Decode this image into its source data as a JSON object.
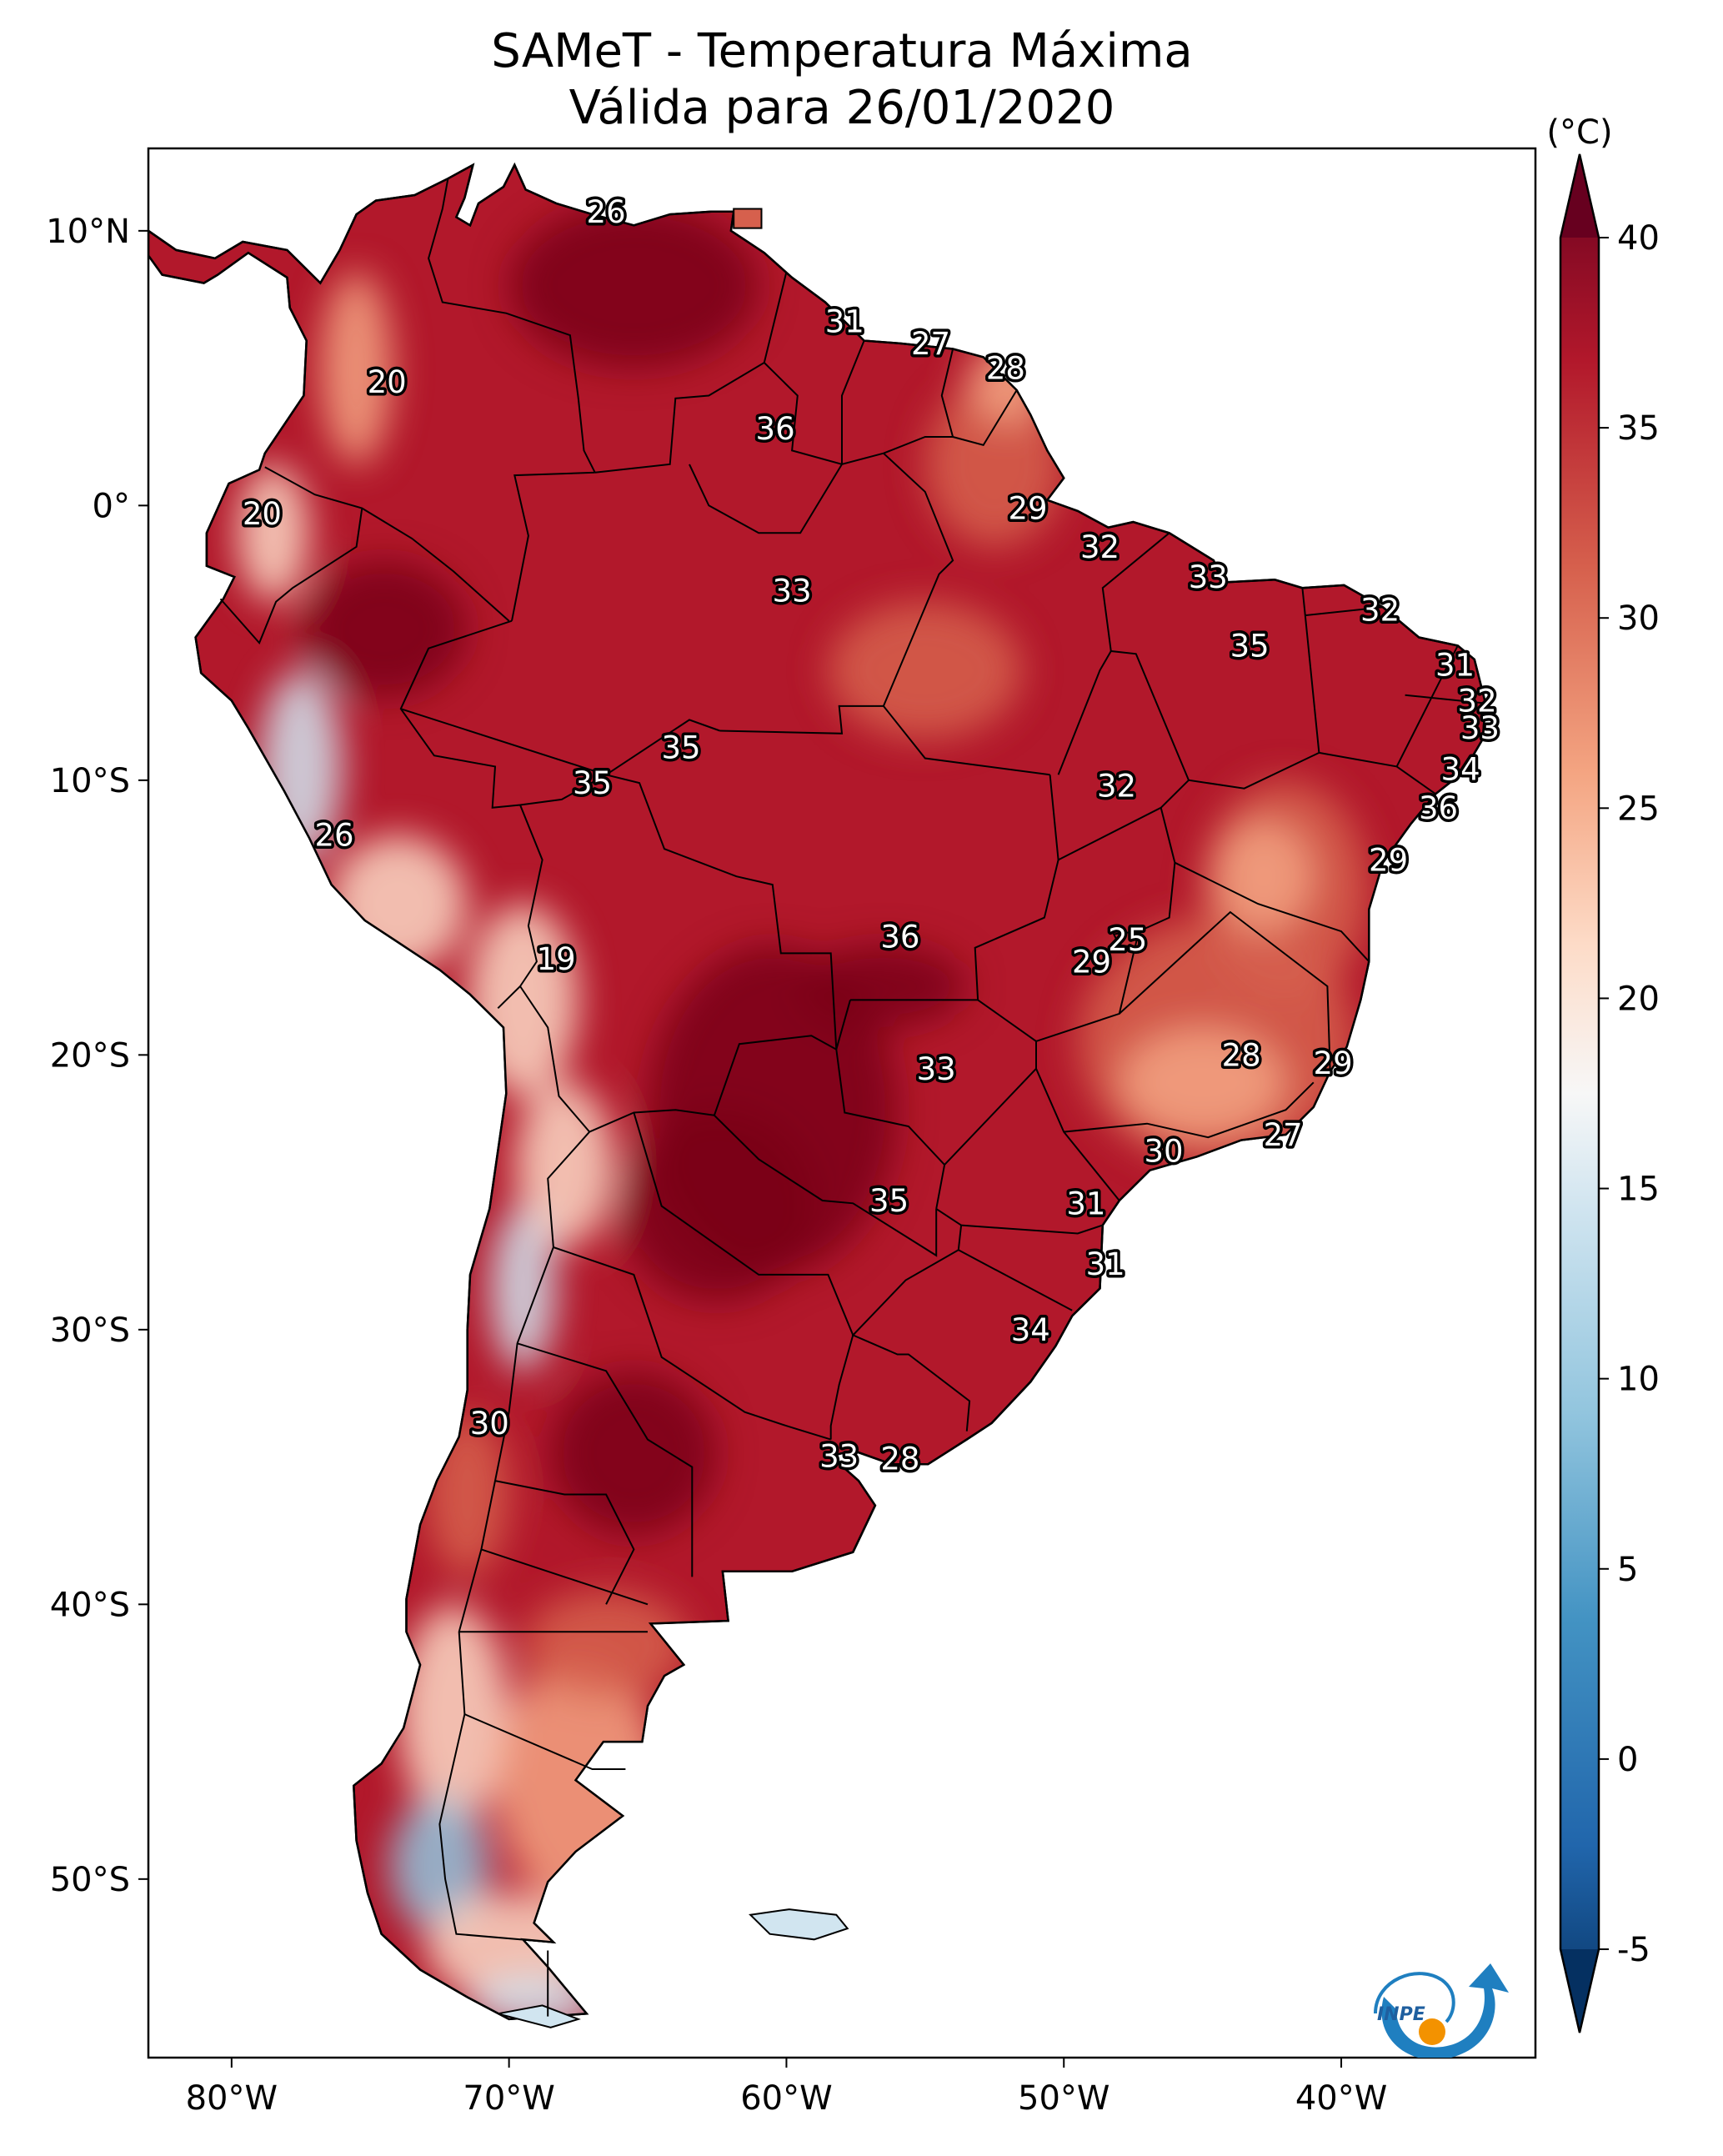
{
  "title": {
    "line1": "SAMeT - Temperatura Máxima",
    "line2": "Válida para 26/01/2020"
  },
  "map": {
    "lat_ticks": [
      {
        "label": "10°N",
        "lat": 10
      },
      {
        "label": "0°",
        "lat": 0
      },
      {
        "label": "10°S",
        "lat": -10
      },
      {
        "label": "20°S",
        "lat": -20
      },
      {
        "label": "30°S",
        "lat": -30
      },
      {
        "label": "40°S",
        "lat": -40
      },
      {
        "label": "50°S",
        "lat": -50
      }
    ],
    "lon_ticks": [
      {
        "label": "80°W",
        "lon": -80
      },
      {
        "label": "70°W",
        "lon": -70
      },
      {
        "label": "60°W",
        "lon": -60
      },
      {
        "label": "50°W",
        "lon": -50
      },
      {
        "label": "40°W",
        "lon": -40
      }
    ],
    "extent": {
      "lon_min": -83,
      "lon_max": -33,
      "lat_min": -56.5,
      "lat_max": 13
    },
    "station_values": [
      {
        "text": "26",
        "lon": -66.5,
        "lat": 10.7
      },
      {
        "text": "31",
        "lon": -57.9,
        "lat": 6.7
      },
      {
        "text": "27",
        "lon": -54.8,
        "lat": 5.9
      },
      {
        "text": "28",
        "lon": -52.1,
        "lat": 5.0
      },
      {
        "text": "20",
        "lon": -74.4,
        "lat": 4.5
      },
      {
        "text": "36",
        "lon": -60.4,
        "lat": 2.8
      },
      {
        "text": "20",
        "lon": -78.9,
        "lat": -0.3
      },
      {
        "text": "29",
        "lon": -51.3,
        "lat": -0.1
      },
      {
        "text": "32",
        "lon": -48.7,
        "lat": -1.5
      },
      {
        "text": "33",
        "lon": -59.8,
        "lat": -3.1
      },
      {
        "text": "33",
        "lon": -44.8,
        "lat": -2.6
      },
      {
        "text": "32",
        "lon": -38.6,
        "lat": -3.8
      },
      {
        "text": "35",
        "lon": -43.3,
        "lat": -5.1
      },
      {
        "text": "31",
        "lon": -35.9,
        "lat": -5.8
      },
      {
        "text": "32",
        "lon": -35.1,
        "lat": -7.1
      },
      {
        "text": "33",
        "lon": -35.0,
        "lat": -8.1
      },
      {
        "text": "35",
        "lon": -63.8,
        "lat": -8.8
      },
      {
        "text": "34",
        "lon": -35.7,
        "lat": -9.6
      },
      {
        "text": "35",
        "lon": -67.0,
        "lat": -10.1
      },
      {
        "text": "32",
        "lon": -48.1,
        "lat": -10.2
      },
      {
        "text": "36",
        "lon": -36.5,
        "lat": -11.0
      },
      {
        "text": "26",
        "lon": -76.3,
        "lat": -12.0
      },
      {
        "text": "29",
        "lon": -38.3,
        "lat": -12.9
      },
      {
        "text": "36",
        "lon": -55.9,
        "lat": -15.7
      },
      {
        "text": "25",
        "lon": -47.7,
        "lat": -15.8
      },
      {
        "text": "29",
        "lon": -49.0,
        "lat": -16.6
      },
      {
        "text": "19",
        "lon": -68.3,
        "lat": -16.5
      },
      {
        "text": "28",
        "lon": -43.6,
        "lat": -20.0
      },
      {
        "text": "29",
        "lon": -40.3,
        "lat": -20.3
      },
      {
        "text": "33",
        "lon": -54.6,
        "lat": -20.5
      },
      {
        "text": "27",
        "lon": -42.1,
        "lat": -22.9
      },
      {
        "text": "30",
        "lon": -46.4,
        "lat": -23.5
      },
      {
        "text": "35",
        "lon": -56.3,
        "lat": -25.3
      },
      {
        "text": "31",
        "lon": -49.2,
        "lat": -25.4
      },
      {
        "text": "31",
        "lon": -48.5,
        "lat": -27.6
      },
      {
        "text": "34",
        "lon": -51.2,
        "lat": -30.0
      },
      {
        "text": "30",
        "lon": -70.7,
        "lat": -33.4
      },
      {
        "text": "33",
        "lon": -58.1,
        "lat": -34.6
      },
      {
        "text": "28",
        "lon": -55.9,
        "lat": -34.7
      }
    ]
  },
  "colorbar": {
    "unit_label": "(°C)",
    "ticks": [
      {
        "label": "40",
        "value": 40
      },
      {
        "label": "35",
        "value": 35
      },
      {
        "label": "30",
        "value": 30
      },
      {
        "label": "25",
        "value": 25
      },
      {
        "label": "20",
        "value": 20
      },
      {
        "label": "15",
        "value": 15
      },
      {
        "label": "10",
        "value": 10
      },
      {
        "label": "5",
        "value": 5
      },
      {
        "label": "0",
        "value": 0
      },
      {
        "label": "-5",
        "value": -5
      }
    ],
    "range": [
      -5,
      40
    ],
    "colors": [
      "#053061",
      "#2166ac",
      "#4393c3",
      "#92c5de",
      "#d1e5f0",
      "#f7f7f7",
      "#fddbc7",
      "#f4a582",
      "#d6604d",
      "#b2182b",
      "#67001f"
    ]
  },
  "logo": {
    "text": "INPE",
    "colors": {
      "swoosh": "#1f7fc0",
      "dot": "#f39200"
    }
  },
  "colors": {
    "land_hot": "#b2182b",
    "land_very_hot": "#7a0519",
    "land_warm": "#d6604d",
    "land_mild": "#f4a582",
    "land_cool": "#fddbc7",
    "land_cold": "#d1e5f0",
    "land_cold_blue": "#92c5de",
    "border": "#000000"
  }
}
